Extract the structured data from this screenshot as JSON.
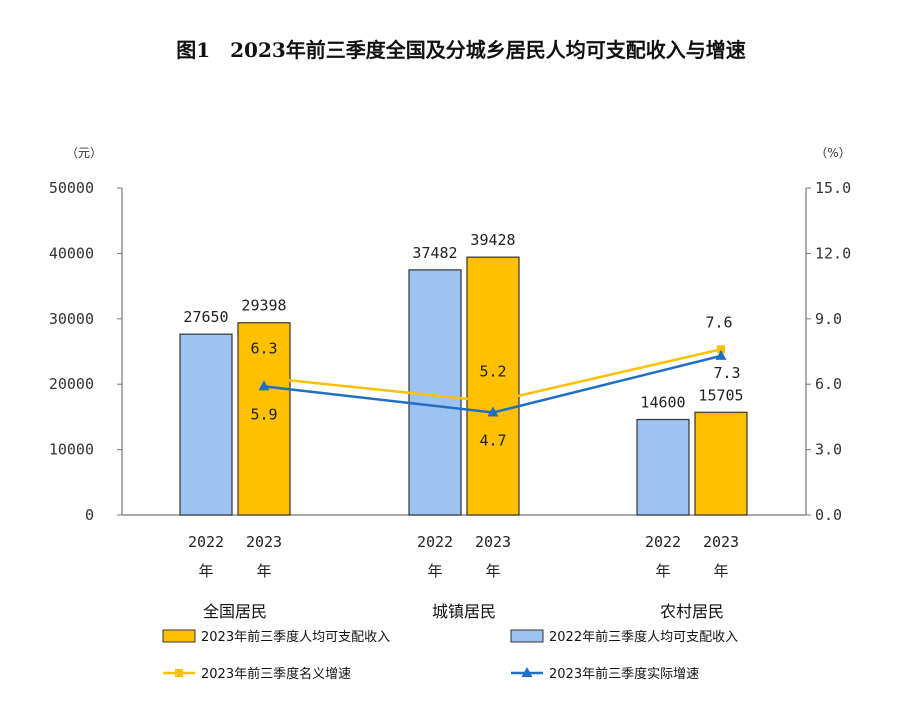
{
  "chart_data": {
    "type": "bar",
    "title": "图1　2023年前三季度全国及分城乡居民人均可支配收入与增速",
    "y_left_unit": "（元）",
    "y_right_unit": "（%）",
    "ylim_left": [
      0,
      50000
    ],
    "ylim_right": [
      0,
      15
    ],
    "yticks_left": [
      "0",
      "10000",
      "20000",
      "30000",
      "40000",
      "50000"
    ],
    "yticks_right": [
      "0.0",
      "3.0",
      "6.0",
      "9.0",
      "12.0",
      "15.0"
    ],
    "categories": [
      "全国居民",
      "城镇居民",
      "农村居民"
    ],
    "year_labels": [
      "2022",
      "2023"
    ],
    "year_suffix": "年",
    "bar_series": [
      {
        "name": "2022年前三季度人均可支配收入",
        "color": "#9DC3F2",
        "values": [
          27650,
          37482,
          14600
        ],
        "labels": [
          "27650",
          "37482",
          "14600"
        ]
      },
      {
        "name": "2023年前三季度人均可支配收入",
        "color": "#FFC000",
        "values": [
          29398,
          39428,
          15705
        ],
        "labels": [
          "29398",
          "39428",
          "15705"
        ]
      }
    ],
    "line_series": [
      {
        "name": "2023年前三季度名义增速",
        "color": "#FFC000",
        "marker": "square",
        "values": [
          6.3,
          5.2,
          7.6
        ],
        "labels": [
          "6.3",
          "5.2",
          "7.6"
        ]
      },
      {
        "name": "2023年前三季度实际增速",
        "color": "#1F6FC5",
        "marker": "triangle",
        "values": [
          5.9,
          4.7,
          7.3
        ],
        "labels": [
          "5.9",
          "4.7",
          "7.3"
        ]
      }
    ],
    "legend": [
      "2023年前三季度人均可支配收入",
      "2022年前三季度人均可支配收入",
      "2023年前三季度名义增速",
      "2023年前三季度实际增速"
    ],
    "grid": false,
    "legend_placement": "bottom"
  }
}
